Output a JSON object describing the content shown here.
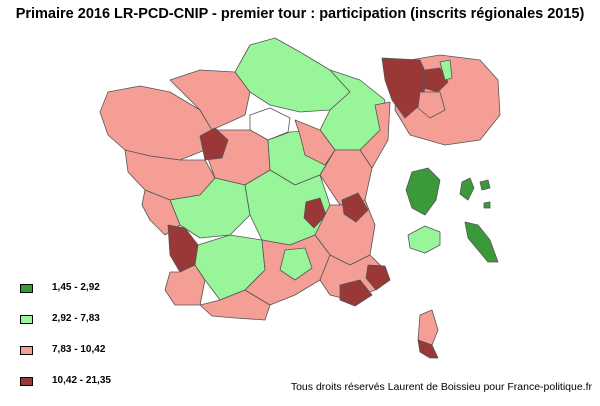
{
  "title": "Primaire 2016 LR-PCD-CNIP - premier tour : participation (inscrits régionales 2015)",
  "legend": [
    {
      "label": "1,45 - 2,92",
      "color": "#3a9a3a"
    },
    {
      "label": "2,92 - 7,83",
      "color": "#99f599"
    },
    {
      "label": "7,83 - 10,42",
      "color": "#f59e96"
    },
    {
      "label": "10,42 - 21,35",
      "color": "#9a3838"
    }
  ],
  "credit": "Tous droits réservés Laurent de Boissieu pour France-politique.fr"
}
